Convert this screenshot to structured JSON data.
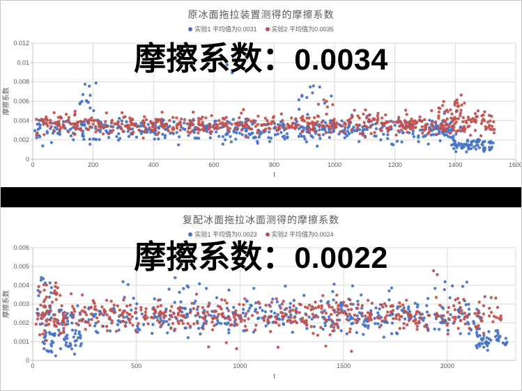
{
  "page": {
    "background": "#ffffff",
    "border_color": "#c6c6c6",
    "separator_color": "#000000",
    "text_color": "#595959",
    "grid_color": "#d9d9d9",
    "axis_color": "#bfbfbf"
  },
  "chart_data": [
    {
      "type": "scatter",
      "title": "原冰面拖拉装置测得的摩擦系数",
      "overlay": {
        "label": "摩擦系数：",
        "value": "0.0034"
      },
      "legend": [
        {
          "label": "实验1 平均值为0.0031",
          "color": "#4472c4"
        },
        {
          "label": "实验2 平均值为0.0035",
          "color": "#c0504d"
        }
      ],
      "xlabel": "t",
      "ylabel": "摩擦系数",
      "xlim": [
        0,
        1600
      ],
      "ylim": [
        0,
        0.012
      ],
      "x_ticks": [
        "0",
        "200",
        "400",
        "600",
        "800",
        "1000",
        "1200",
        "1400",
        "1600"
      ],
      "y_ticks": [
        "0",
        "0.002",
        "0.004",
        "0.006",
        "0.008",
        "0.01",
        "0.012"
      ],
      "grid": true,
      "legend_position": "top",
      "point_radius": 2.2,
      "series": [
        {
          "name": "实验1",
          "color": "#4472c4",
          "mean": 0.0031,
          "clusters": [
            {
              "n": 470,
              "x": [
                5,
                1395
              ],
              "mean": 0.0031,
              "std": 0.00062,
              "min": 0.0013,
              "max": 0.0056
            },
            {
              "n": 13,
              "x": [
                150,
                215
              ],
              "mean": 0.0063,
              "std": 0.0011,
              "min": 0.0048,
              "max": 0.0087
            },
            {
              "n": 3,
              "x": [
                620,
                670
              ],
              "mean": 0.0092,
              "std": 0.0009,
              "min": 0.0078,
              "max": 0.0102
            },
            {
              "n": 11,
              "x": [
                860,
                990
              ],
              "mean": 0.0064,
              "std": 0.0009,
              "min": 0.005,
              "max": 0.008
            },
            {
              "n": 20,
              "x": [
                1300,
                1420
              ],
              "mean": 0.0028,
              "std": 0.0005,
              "min": 0.002,
              "max": 0.004
            },
            {
              "n": 65,
              "x": [
                1385,
                1530
              ],
              "mean": 0.0015,
              "std": 0.00035,
              "min": 0.0007,
              "max": 0.0023
            }
          ]
        },
        {
          "name": "实验2",
          "color": "#c0504d",
          "mean": 0.0035,
          "clusters": [
            {
              "n": 520,
              "x": [
                5,
                1355
              ],
              "mean": 0.0036,
              "std": 0.00055,
              "min": 0.0021,
              "max": 0.0054
            },
            {
              "n": 5,
              "x": [
                900,
                1040
              ],
              "mean": 0.006,
              "std": 0.0004,
              "min": 0.0053,
              "max": 0.0066
            },
            {
              "n": 18,
              "x": [
                1330,
                1445
              ],
              "mean": 0.0057,
              "std": 0.0006,
              "min": 0.0048,
              "max": 0.0069
            },
            {
              "n": 90,
              "x": [
                1355,
                1530
              ],
              "mean": 0.0037,
              "std": 0.0007,
              "min": 0.0024,
              "max": 0.0055
            }
          ]
        }
      ]
    },
    {
      "type": "scatter",
      "title": "复配冰面拖拉冰面测得的摩擦系数",
      "overlay": {
        "label": "摩擦系数：",
        "value": "0.0022"
      },
      "legend": [
        {
          "label": "实验1 平均值为0.0023",
          "color": "#4472c4"
        },
        {
          "label": "实验2 平均值为0.0024",
          "color": "#c0504d"
        }
      ],
      "xlabel": "t",
      "ylabel": "摩擦系数",
      "xlim": [
        0,
        2330
      ],
      "ylim": [
        0,
        0.006
      ],
      "x_ticks": [
        "0",
        "500",
        "1000",
        "1500",
        "2000"
      ],
      "y_ticks": [
        "0",
        "0.001",
        "0.002",
        "0.003",
        "0.004",
        "0.005",
        "0.006"
      ],
      "grid": true,
      "legend_position": "top",
      "point_radius": 2.2,
      "series": [
        {
          "name": "实验1",
          "color": "#4472c4",
          "mean": 0.0023,
          "clusters": [
            {
              "n": 420,
              "x": [
                15,
                2160
              ],
              "mean": 0.0023,
              "std": 0.00048,
              "min": 0.0012,
              "max": 0.0036
            },
            {
              "n": 24,
              "x": [
                250,
                2100
              ],
              "mean": 0.0039,
              "std": 0.00025,
              "min": 0.0035,
              "max": 0.0044
            },
            {
              "n": 10,
              "x": [
                25,
                95
              ],
              "mean": 0.0039,
              "std": 0.0004,
              "min": 0.003,
              "max": 0.0046
            },
            {
              "n": 55,
              "x": [
                45,
                235
              ],
              "mean": 0.001,
              "std": 0.0004,
              "min": 8e-05,
              "max": 0.0018
            },
            {
              "n": 42,
              "x": [
                2140,
                2290
              ],
              "mean": 0.001,
              "std": 0.0003,
              "min": 0.0004,
              "max": 0.0016
            }
          ]
        },
        {
          "name": "实验2",
          "color": "#c0504d",
          "mean": 0.0024,
          "clusters": [
            {
              "n": 520,
              "x": [
                10,
                2265
              ],
              "mean": 0.0024,
              "std": 0.00042,
              "min": 0.0013,
              "max": 0.0038
            },
            {
              "n": 18,
              "x": [
                25,
                135
              ],
              "mean": 0.0035,
              "std": 0.0004,
              "min": 0.0028,
              "max": 0.0042
            },
            {
              "n": 8,
              "x": [
                30,
                150
              ],
              "mean": 0.0012,
              "std": 0.0005,
              "min": 0.0003,
              "max": 0.002
            },
            {
              "n": 6,
              "x": [
                200,
                1800
              ],
              "mean": 0.0006,
              "std": 0.00025,
              "min": 0.0001,
              "max": 0.001
            },
            {
              "n": 2,
              "x": [
                1900,
                2050
              ],
              "mean": 0.0047,
              "std": 0.0002,
              "min": 0.0044,
              "max": 0.005
            }
          ]
        }
      ]
    }
  ]
}
